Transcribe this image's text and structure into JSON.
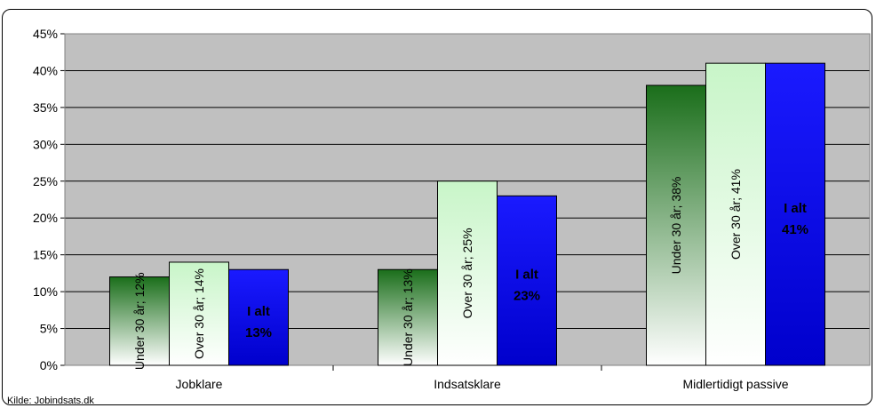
{
  "source_note": "Kilde: Jobindsats.dk",
  "chart_data": {
    "type": "bar",
    "title": "",
    "xlabel": "",
    "ylabel": "",
    "categories": [
      "Jobklare",
      "Indsatsklare",
      "Midlertidigt passive"
    ],
    "series": [
      {
        "name": "Under 30 år",
        "values": [
          12,
          13,
          38
        ],
        "colors": [
          "#1a6e1a",
          "#ffffff"
        ]
      },
      {
        "name": "Over 30 år",
        "values": [
          14,
          25,
          41
        ],
        "colors": [
          "#ffffff",
          "#c8f5c8"
        ]
      },
      {
        "name": "I alt",
        "values": [
          13,
          23,
          41
        ],
        "colors": [
          "#1a1aff",
          "#0000cc"
        ]
      }
    ],
    "data_labels": [
      [
        "Under 30 år; 12%",
        "Over 30 år; 14%",
        "I alt\n13%"
      ],
      [
        "Under 30 år; 13%",
        "Over 30 år; 25%",
        "I alt\n23%"
      ],
      [
        "Under 30 år; 38%",
        "Over 30 år; 41%",
        "I alt\n41%"
      ]
    ],
    "yticks": [
      "0%",
      "5%",
      "10%",
      "15%",
      "20%",
      "25%",
      "30%",
      "35%",
      "40%",
      "45%"
    ],
    "ylim": [
      0,
      45
    ],
    "grid": true,
    "legend": "none",
    "plot_background": "#c0c0c0"
  }
}
